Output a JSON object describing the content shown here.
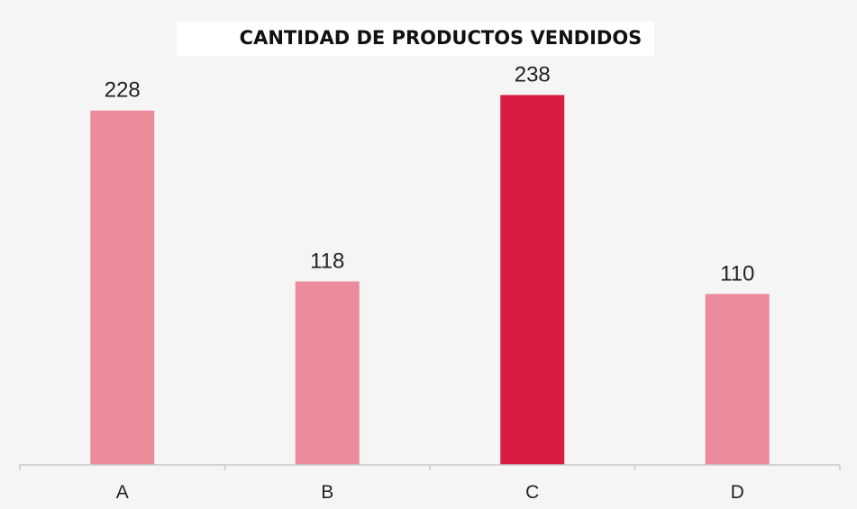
{
  "chart_data": {
    "type": "bar",
    "title": "CANTIDAD DE PRODUCTOS VENDIDOS",
    "categories": [
      "A",
      "B",
      "C",
      "D"
    ],
    "values": [
      228,
      118,
      238,
      110
    ],
    "data_labels": [
      "228",
      "118",
      "238",
      "110"
    ],
    "highlight_index": 2,
    "colors": {
      "bar": "#ea8c9c",
      "highlight": "#da1c42",
      "axis": "#c8c8c8",
      "background": "#f5f5f5"
    },
    "ylim": [
      0,
      240
    ],
    "xlabel": "",
    "ylabel": "",
    "grid": false,
    "legend": "none"
  }
}
